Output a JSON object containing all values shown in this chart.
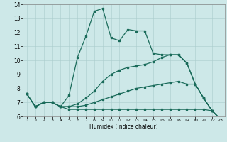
{
  "xlabel": "Humidex (Indice chaleur)",
  "xlim": [
    -0.5,
    23.5
  ],
  "ylim": [
    6,
    14
  ],
  "xticks": [
    0,
    1,
    2,
    3,
    4,
    5,
    6,
    7,
    8,
    9,
    10,
    11,
    12,
    13,
    14,
    15,
    16,
    17,
    18,
    19,
    20,
    21,
    22,
    23
  ],
  "yticks": [
    6,
    7,
    8,
    9,
    10,
    11,
    12,
    13,
    14
  ],
  "bg_color": "#cde8e8",
  "grid_color": "#aacccc",
  "line_color": "#1a6b5a",
  "line1_x": [
    0,
    1,
    2,
    3,
    4,
    5,
    6,
    7,
    8,
    9,
    10,
    11,
    12,
    13,
    14,
    15,
    16,
    17,
    18,
    19,
    20,
    21,
    22,
    23
  ],
  "line1_y": [
    7.6,
    6.7,
    7.0,
    7.0,
    6.7,
    6.5,
    6.5,
    6.5,
    6.5,
    6.5,
    6.5,
    6.5,
    6.5,
    6.5,
    6.5,
    6.5,
    6.5,
    6.5,
    6.5,
    6.5,
    6.5,
    6.5,
    6.4,
    5.8
  ],
  "line2_x": [
    0,
    1,
    2,
    3,
    4,
    5,
    6,
    7,
    8,
    9,
    10,
    11,
    12,
    13,
    14,
    15,
    16,
    17,
    18,
    19,
    20,
    21,
    22,
    23
  ],
  "line2_y": [
    7.6,
    6.7,
    7.0,
    7.0,
    6.7,
    6.7,
    6.7,
    6.8,
    7.0,
    7.2,
    7.4,
    7.6,
    7.8,
    8.0,
    8.1,
    8.2,
    8.3,
    8.4,
    8.5,
    8.3,
    8.3,
    7.3,
    6.4,
    5.8
  ],
  "line3_x": [
    0,
    1,
    2,
    3,
    4,
    5,
    6,
    7,
    8,
    9,
    10,
    11,
    12,
    13,
    14,
    15,
    16,
    17,
    18,
    19,
    20,
    21,
    22,
    23
  ],
  "line3_y": [
    7.6,
    6.7,
    7.0,
    7.0,
    6.7,
    6.7,
    6.9,
    7.3,
    7.8,
    8.5,
    9.0,
    9.3,
    9.5,
    9.6,
    9.7,
    9.9,
    10.2,
    10.4,
    10.4,
    9.8,
    8.3,
    7.3,
    6.4,
    5.8
  ],
  "line4_x": [
    0,
    1,
    2,
    3,
    4,
    5,
    6,
    7,
    8,
    9,
    10,
    11,
    12,
    13,
    14,
    15,
    16,
    17,
    18,
    19,
    20,
    21,
    22,
    23
  ],
  "line4_y": [
    7.6,
    6.7,
    7.0,
    7.0,
    6.7,
    7.5,
    10.2,
    11.7,
    13.5,
    13.7,
    11.6,
    11.4,
    12.2,
    12.1,
    12.1,
    10.5,
    10.4,
    10.4,
    10.4,
    9.8,
    8.3,
    7.3,
    6.4,
    5.8
  ]
}
